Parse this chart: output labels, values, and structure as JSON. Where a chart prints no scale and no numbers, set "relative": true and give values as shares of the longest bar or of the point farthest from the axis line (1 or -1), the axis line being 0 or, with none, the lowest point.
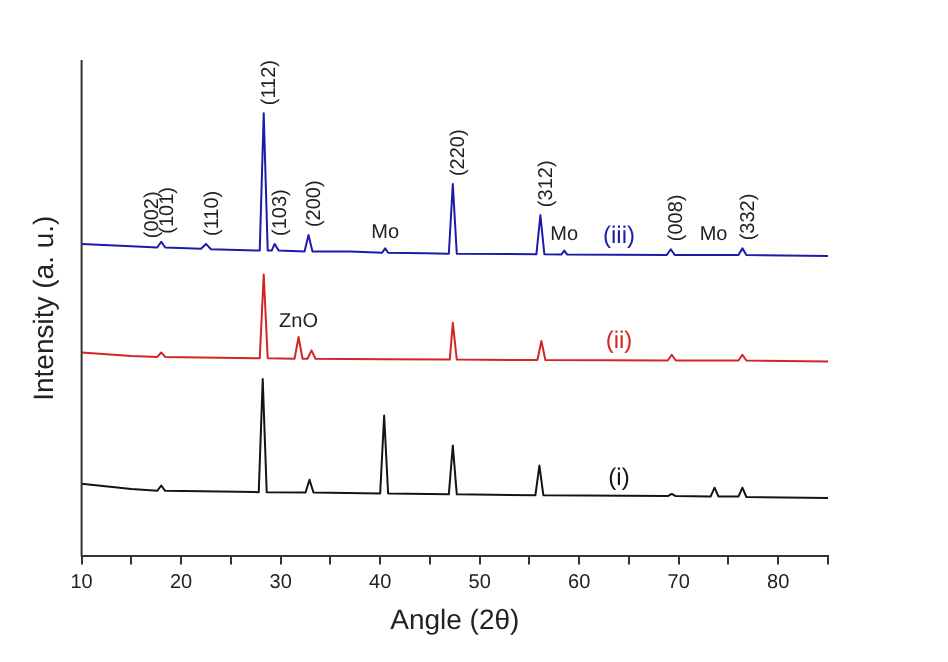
{
  "chart_data": {
    "type": "line",
    "relative": true,
    "xlabel": "Angle (2θ)",
    "ylabel": "Intensity (a. u.)",
    "xlim": [
      10,
      85
    ],
    "xticks": [
      10,
      {
        "value": 15,
        "label": null
      },
      20,
      {
        "value": 25,
        "label": null
      },
      30,
      {
        "value": 35,
        "label": null
      },
      40,
      {
        "value": 45,
        "label": null
      },
      50,
      {
        "value": 55,
        "label": null
      },
      60,
      {
        "value": 65,
        "label": null
      },
      70,
      {
        "value": 75,
        "label": null
      },
      80,
      {
        "value": 85,
        "label": null
      }
    ],
    "grid": false,
    "legend": false,
    "marker": "none",
    "line_style": "solid",
    "series": [
      {
        "name": "(iii)",
        "color": "#1c1ca8",
        "x": [
          10,
          15,
          17.6,
          18,
          18.4,
          22,
          22.5,
          23,
          27.9,
          28.3,
          28.7,
          29.1,
          29.4,
          29.8,
          32.4,
          32.8,
          33.2,
          37,
          40.2,
          40.5,
          40.8,
          44.5,
          46.9,
          47.3,
          47.7,
          55.7,
          56.1,
          56.5,
          58.2,
          58.5,
          58.8,
          68.8,
          69.2,
          69.6,
          76,
          76.4,
          76.8,
          85
        ],
        "values": [
          0.705,
          0.7,
          0.697,
          0.71,
          0.697,
          0.694,
          0.705,
          0.693,
          0.69,
          1.0,
          0.69,
          0.69,
          0.705,
          0.69,
          0.688,
          0.725,
          0.688,
          0.688,
          0.685,
          0.695,
          0.685,
          0.684,
          0.683,
          0.84,
          0.683,
          0.682,
          0.77,
          0.682,
          0.681,
          0.69,
          0.681,
          0.68,
          0.693,
          0.68,
          0.68,
          0.695,
          0.68,
          0.678
        ]
      },
      {
        "name": "(ii)",
        "color": "#d42424",
        "x": [
          10,
          15,
          17.6,
          18,
          18.4,
          27.9,
          28.3,
          28.7,
          31.4,
          31.8,
          32.2,
          32.7,
          33.1,
          33.5,
          40,
          47.0,
          47.3,
          47.7,
          55.8,
          56.2,
          56.6,
          68.9,
          69.3,
          69.7,
          76,
          76.4,
          76.8,
          85
        ],
        "values": [
          0.46,
          0.452,
          0.45,
          0.46,
          0.45,
          0.447,
          0.636,
          0.447,
          0.446,
          0.495,
          0.446,
          0.446,
          0.465,
          0.446,
          0.445,
          0.444,
          0.527,
          0.444,
          0.443,
          0.486,
          0.443,
          0.442,
          0.455,
          0.442,
          0.442,
          0.455,
          0.442,
          0.44
        ]
      },
      {
        "name": "(i)",
        "color": "#141414",
        "x": [
          10,
          15,
          17.6,
          18,
          18.4,
          27.8,
          28.2,
          28.6,
          32.5,
          32.9,
          33.3,
          40,
          40.4,
          40.8,
          46.9,
          47.3,
          47.7,
          55.6,
          56,
          56.4,
          68.9,
          69.3,
          69.7,
          73.2,
          73.6,
          74,
          76,
          76.4,
          76.8,
          85
        ],
        "values": [
          0.164,
          0.152,
          0.148,
          0.16,
          0.148,
          0.145,
          0.4,
          0.145,
          0.144,
          0.173,
          0.144,
          0.142,
          0.318,
          0.142,
          0.14,
          0.25,
          0.14,
          0.138,
          0.205,
          0.138,
          0.136,
          0.141,
          0.136,
          0.135,
          0.155,
          0.135,
          0.135,
          0.155,
          0.134,
          0.132
        ]
      }
    ],
    "annotations": [
      {
        "text": "(002)",
        "x": 16.5,
        "y": 0.7
      },
      {
        "text": "(101)",
        "x": 18,
        "y": 0.71
      },
      {
        "text": "(110)",
        "x": 22.5,
        "y": 0.705
      },
      {
        "text": "(112)",
        "x": 28.3,
        "y": 1.0
      },
      {
        "text": "(103)",
        "x": 29.4,
        "y": 0.705
      },
      {
        "text": "(200)",
        "x": 32.8,
        "y": 0.725
      },
      {
        "text": "Mo",
        "x": 40.5,
        "y": 0.695
      },
      {
        "text": "(220)",
        "x": 47.3,
        "y": 0.84
      },
      {
        "text": "(312)",
        "x": 56.1,
        "y": 0.77
      },
      {
        "text": "Mo",
        "x": 58.5,
        "y": 0.69
      },
      {
        "text": "(008)",
        "x": 69.2,
        "y": 0.693
      },
      {
        "text": "Mo",
        "x": 73.5,
        "y": 0.69
      },
      {
        "text": "(332)",
        "x": 76.4,
        "y": 0.695
      },
      {
        "text": "ZnO",
        "x": 31.8,
        "y": 0.495
      }
    ]
  }
}
